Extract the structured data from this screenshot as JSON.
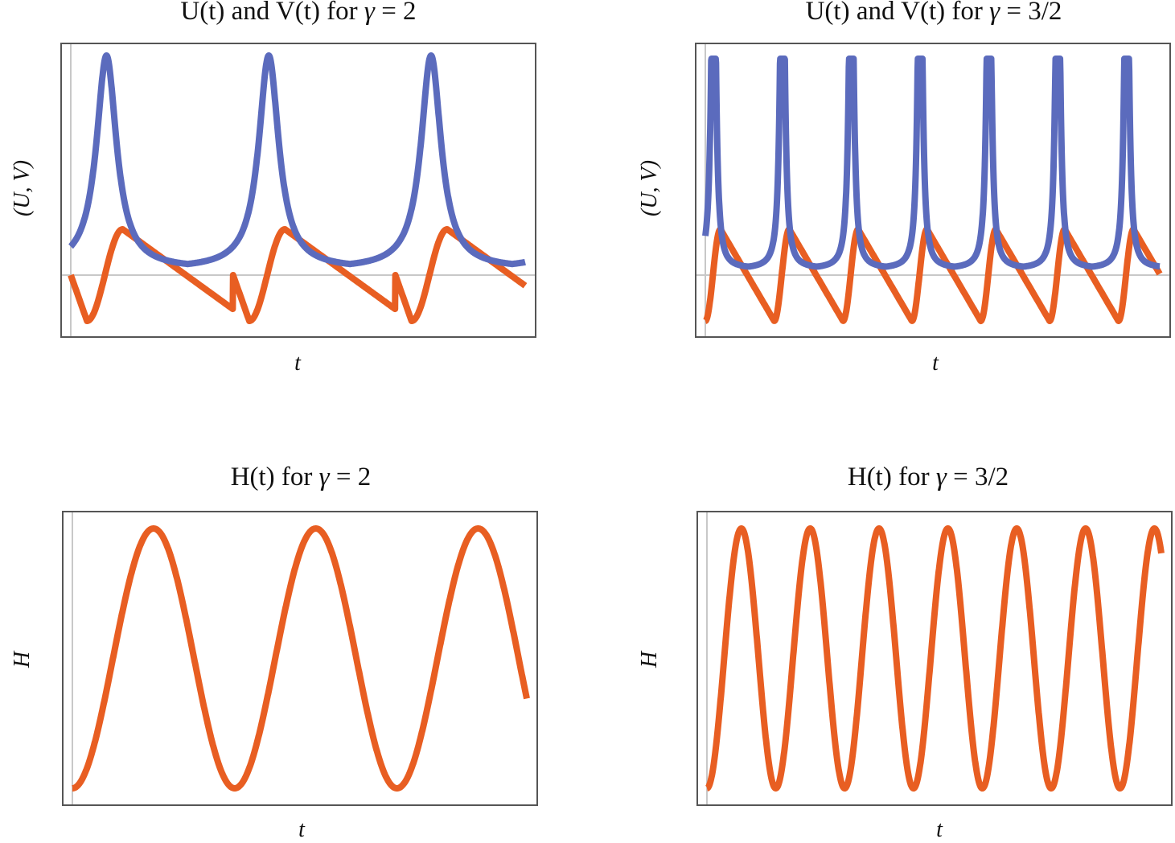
{
  "colors": {
    "u_series": "#5b6bbd",
    "v_series": "#e85e22",
    "h_series": "#e85e22",
    "axis_line": "#c8c8c8",
    "frame": "#555555"
  },
  "chart_data": [
    {
      "type": "line",
      "title": "U(t) and V(t) for γ = 2",
      "title_prefix": "U(t) and V(t) for ",
      "title_var": "γ",
      "title_suffix": " = 2",
      "xlabel": "t",
      "ylabel": "(U, V)",
      "grid": false,
      "ticks": false,
      "periods": 2.8,
      "series": [
        {
          "name": "U",
          "color": "#5b6bbd",
          "description": "sharp periodic peaks, ~3 peaks, baseline slightly above zero"
        },
        {
          "name": "V",
          "color": "#e85e22",
          "description": "sawtooth-like oscillation around zero, starts at zero and dips negative"
        }
      ]
    },
    {
      "type": "line",
      "title": "U(t) and V(t) for γ = 3/2",
      "title_prefix": "U(t) and V(t) for ",
      "title_var": "γ",
      "title_suffix": " = 3/2",
      "xlabel": "t",
      "ylabel": "(U, V)",
      "grid": false,
      "ticks": false,
      "periods": 6.6,
      "series": [
        {
          "name": "U",
          "color": "#5b6bbd",
          "description": "very sharp peaks clipped at top, ~7 peaks"
        },
        {
          "name": "V",
          "color": "#e85e22",
          "description": "sawtooth oscillation around zero, ~7 periods"
        }
      ]
    },
    {
      "type": "line",
      "title": "H(t) for γ = 2",
      "title_prefix": "H(t) for ",
      "title_var": "γ",
      "title_suffix": " = 2",
      "xlabel": "t",
      "ylabel": "H",
      "grid": false,
      "ticks": false,
      "periods": 2.8,
      "series": [
        {
          "name": "H",
          "color": "#e85e22",
          "description": "smooth periodic oscillation, 3 peaks"
        }
      ]
    },
    {
      "type": "line",
      "title": "H(t) for γ = 3/2",
      "title_prefix": "H(t) for ",
      "title_var": "γ",
      "title_suffix": " = 3/2",
      "xlabel": "t",
      "ylabel": "H",
      "grid": false,
      "ticks": false,
      "periods": 6.6,
      "series": [
        {
          "name": "H",
          "color": "#e85e22",
          "description": "periodic oscillation, 7 peaks"
        }
      ]
    }
  ]
}
